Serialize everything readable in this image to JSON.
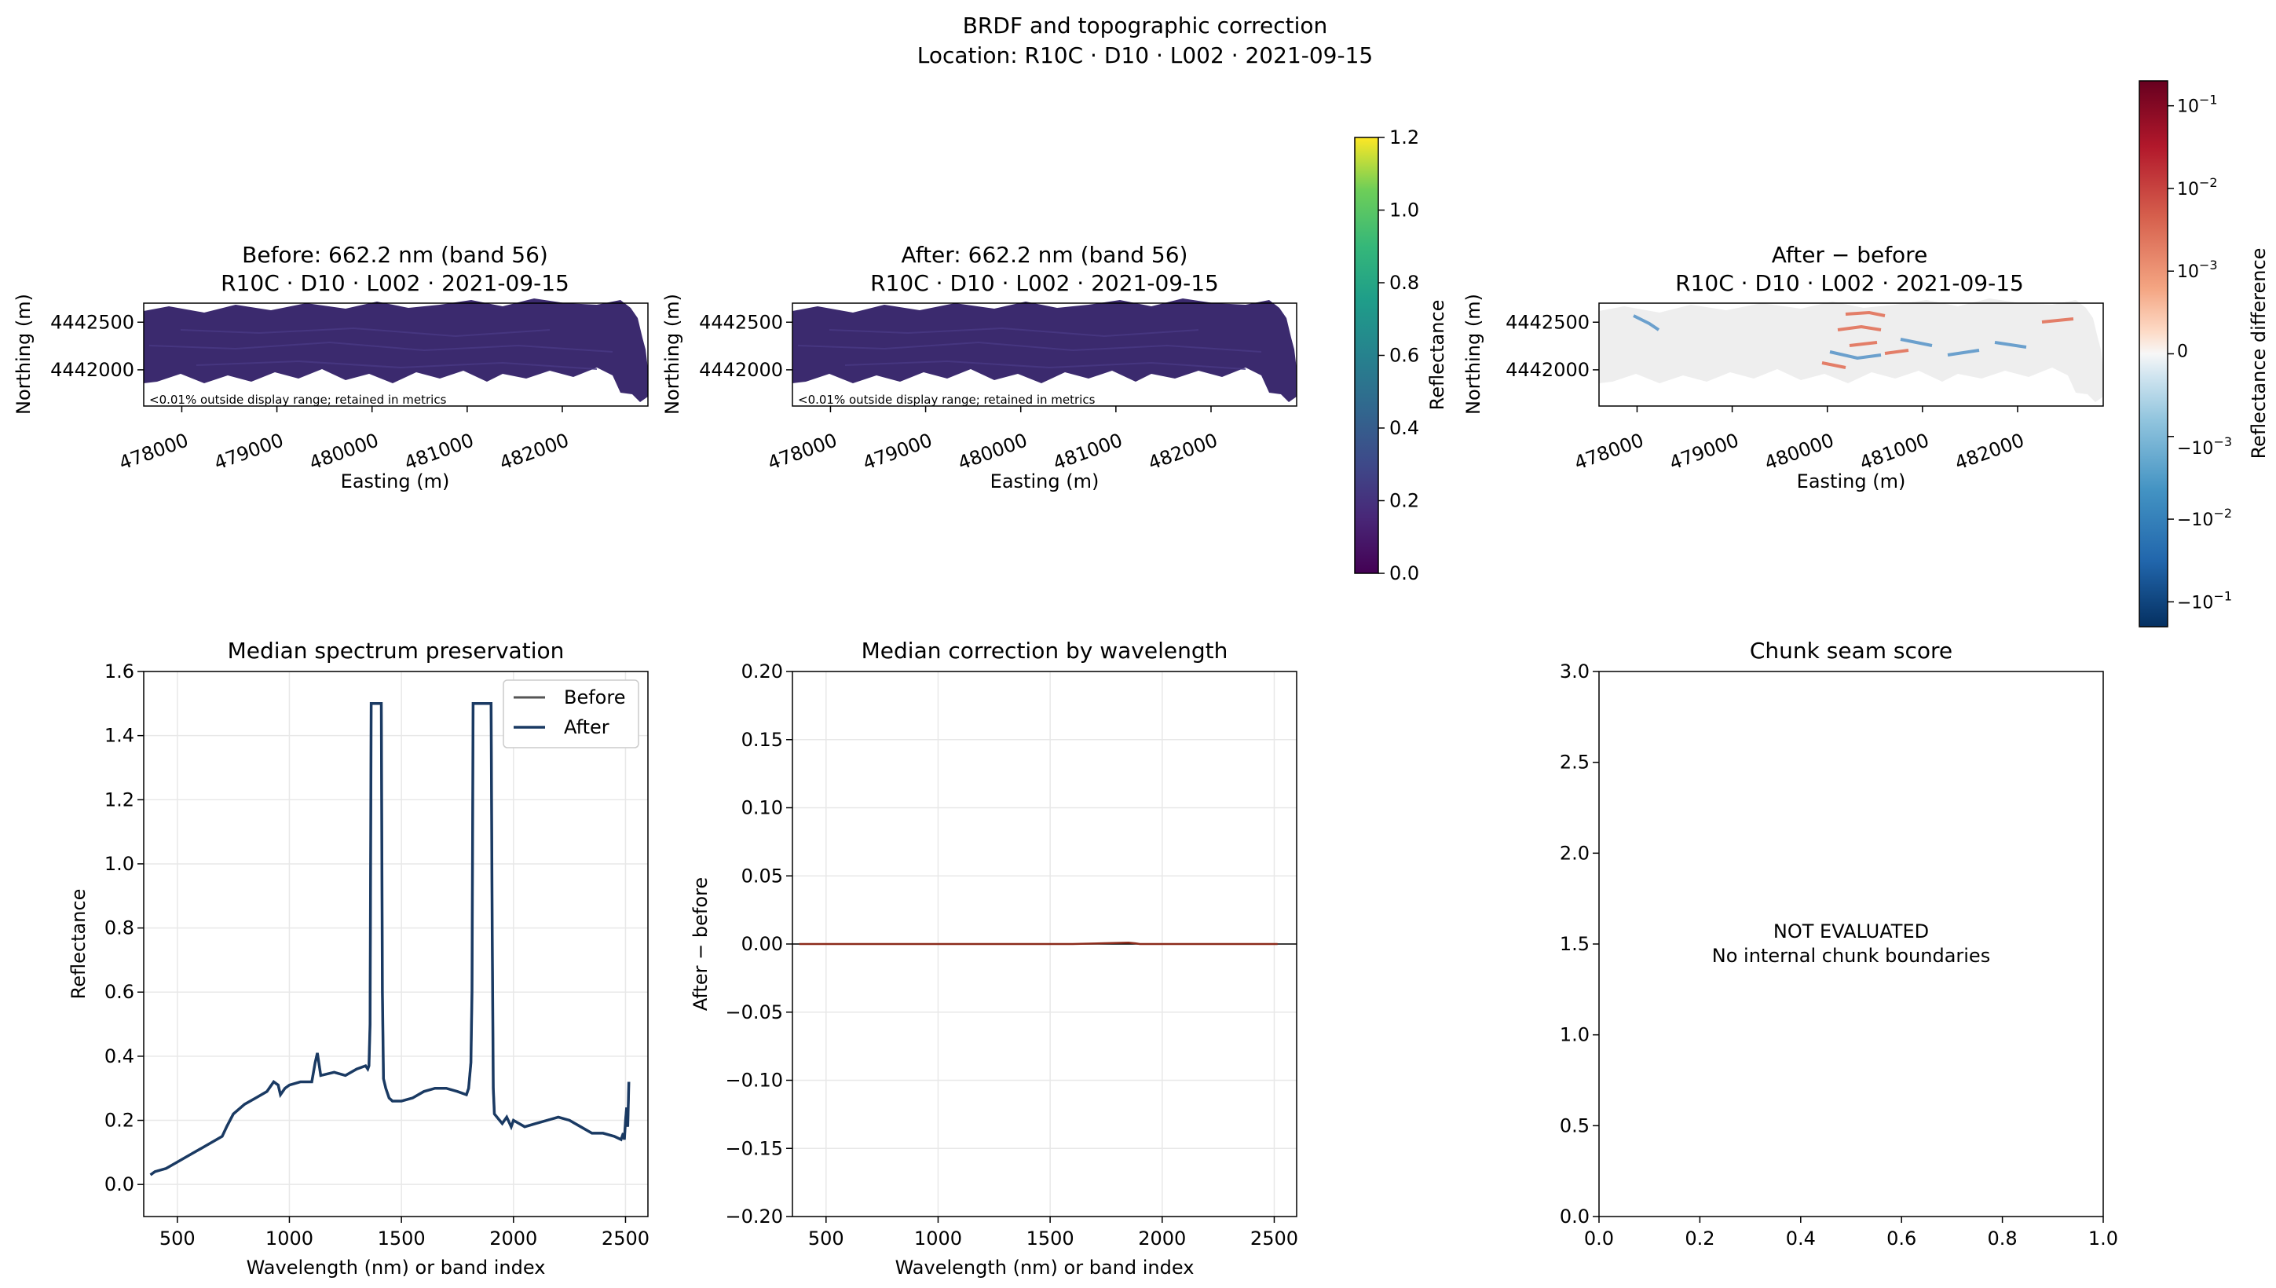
{
  "figure": {
    "title": "BRDF and topographic correction",
    "subtitle": "Location: R10C · D10 · L002 · 2021-09-15"
  },
  "colors": {
    "before_line": "#555555",
    "after_line": "#1a3a63",
    "diff_line": "#8b2a1a",
    "map_fill": "#3b2a6e",
    "grid": "#e8e8e8"
  },
  "chart_data": [
    {
      "id": "map_before",
      "type": "heatmap",
      "title": "Before: 662.2 nm (band 56)",
      "subtitle": "R10C · D10 · L002 · 2021-09-15",
      "xlabel": "Easting (m)",
      "ylabel": "Northing (m)",
      "xticks": [
        478000,
        479000,
        480000,
        481000,
        482000
      ],
      "yticks": [
        4442000,
        4442500
      ],
      "xlim": [
        477600,
        482900
      ],
      "ylim": [
        4441620,
        4442700
      ],
      "note": "<0.01% outside display range; retained in metrics",
      "colorbar": {
        "label": "Reflectance",
        "ticks": [
          "0.0",
          "0.2",
          "0.4",
          "0.6",
          "0.8",
          "1.0",
          "1.2"
        ],
        "range": [
          0,
          1.2
        ],
        "colormap": "viridis"
      }
    },
    {
      "id": "map_after",
      "type": "heatmap",
      "title": "After: 662.2 nm (band 56)",
      "subtitle": "R10C · D10 · L002 · 2021-09-15",
      "xlabel": "Easting (m)",
      "ylabel": "Northing (m)",
      "xticks": [
        478000,
        479000,
        480000,
        481000,
        482000
      ],
      "yticks": [
        4442000,
        4442500
      ],
      "xlim": [
        477600,
        482900
      ],
      "ylim": [
        4441620,
        4442700
      ],
      "note": "<0.01% outside display range; retained in metrics"
    },
    {
      "id": "map_diff",
      "type": "heatmap",
      "title": "After − before",
      "subtitle": "R10C · D10 · L002 · 2021-09-15",
      "xlabel": "Easting (m)",
      "ylabel": "Northing (m)",
      "xticks": [
        478000,
        479000,
        480000,
        481000,
        482000
      ],
      "yticks": [
        4442000,
        4442500
      ],
      "xlim": [
        477600,
        482900
      ],
      "ylim": [
        4441620,
        4442700
      ],
      "colorbar": {
        "label": "Reflectance difference",
        "scale": "symlog",
        "colormap": "RdBu_r",
        "ticks": [
          "10^-1",
          "10^-2",
          "10^-3",
          "0",
          "−10^-3",
          "−10^-2",
          "−10^-1"
        ],
        "tick_labels": [
          {
            "base": "10",
            "exp": "−1"
          },
          {
            "base": "10",
            "exp": "−2"
          },
          {
            "base": "10",
            "exp": "−3"
          },
          {
            "base": "0",
            "exp": ""
          },
          {
            "base": "−10",
            "exp": "−3"
          },
          {
            "base": "−10",
            "exp": "−2"
          },
          {
            "base": "−10",
            "exp": "−1"
          }
        ]
      }
    },
    {
      "id": "spectrum",
      "type": "line",
      "title": "Median spectrum preservation",
      "xlabel": "Wavelength (nm) or band index",
      "ylabel": "Reflectance",
      "xlim": [
        350,
        2600
      ],
      "ylim": [
        -0.1,
        1.6
      ],
      "xticks": [
        500,
        1000,
        1500,
        2000,
        2500
      ],
      "yticks": [
        0.0,
        0.2,
        0.4,
        0.6,
        0.8,
        1.0,
        1.2,
        1.4,
        1.6
      ],
      "grid": true,
      "legend_position": "top-right",
      "series": [
        {
          "name": "Before",
          "color": "#555555"
        },
        {
          "name": "After",
          "color": "#1a3a63"
        }
      ],
      "x": [
        380,
        400,
        450,
        500,
        550,
        600,
        650,
        700,
        720,
        750,
        800,
        850,
        900,
        930,
        950,
        960,
        980,
        1000,
        1050,
        1100,
        1115,
        1125,
        1140,
        1200,
        1250,
        1300,
        1340,
        1350,
        1355,
        1360,
        1365,
        1410,
        1415,
        1420,
        1430,
        1445,
        1460,
        1500,
        1550,
        1600,
        1650,
        1700,
        1750,
        1790,
        1800,
        1810,
        1815,
        1820,
        1900,
        1905,
        1910,
        1915,
        1950,
        1970,
        1990,
        2000,
        2050,
        2100,
        2150,
        2200,
        2250,
        2300,
        2350,
        2400,
        2450,
        2480,
        2490,
        2495,
        2500,
        2505,
        2510,
        2515
      ],
      "y": [
        0.03,
        0.04,
        0.05,
        0.07,
        0.09,
        0.11,
        0.13,
        0.15,
        0.18,
        0.22,
        0.25,
        0.27,
        0.29,
        0.32,
        0.31,
        0.28,
        0.3,
        0.31,
        0.32,
        0.32,
        0.38,
        0.41,
        0.34,
        0.35,
        0.34,
        0.36,
        0.37,
        0.36,
        0.37,
        0.5,
        1.5,
        1.5,
        0.6,
        0.33,
        0.3,
        0.27,
        0.26,
        0.26,
        0.27,
        0.29,
        0.3,
        0.3,
        0.29,
        0.28,
        0.3,
        0.38,
        0.6,
        1.5,
        1.5,
        0.8,
        0.3,
        0.22,
        0.19,
        0.21,
        0.18,
        0.2,
        0.18,
        0.19,
        0.2,
        0.21,
        0.2,
        0.18,
        0.16,
        0.16,
        0.15,
        0.14,
        0.16,
        0.14,
        0.2,
        0.24,
        0.18,
        0.32
      ]
    },
    {
      "id": "correction",
      "type": "line",
      "title": "Median correction by wavelength",
      "xlabel": "Wavelength (nm) or band index",
      "ylabel": "After − before",
      "xlim": [
        350,
        2600
      ],
      "ylim": [
        -0.2,
        0.2
      ],
      "xticks": [
        500,
        1000,
        1500,
        2000,
        2500
      ],
      "yticks": [
        -0.2,
        -0.15,
        -0.1,
        -0.05,
        0.0,
        0.05,
        0.1,
        0.15,
        0.2
      ],
      "ytick_labels": [
        "−0.20",
        "−0.15",
        "−0.10",
        "−0.05",
        "0.00",
        "0.05",
        "0.10",
        "0.15",
        "0.20"
      ],
      "grid": true,
      "series": [
        {
          "color": "#8b2a1a"
        }
      ],
      "x": [
        380,
        800,
        1200,
        1600,
        1850,
        1880,
        1900,
        2100,
        2515
      ],
      "y": [
        0.0,
        0.0,
        0.0,
        0.0,
        0.001,
        0.0005,
        0.0,
        0.0,
        0.0
      ]
    },
    {
      "id": "seam",
      "type": "line",
      "title": "Chunk seam score",
      "xlim": [
        0,
        1
      ],
      "ylim": [
        0,
        3
      ],
      "xticks": [
        0.0,
        0.2,
        0.4,
        0.6,
        0.8,
        1.0
      ],
      "yticks": [
        0.0,
        0.5,
        1.0,
        1.5,
        2.0,
        2.5,
        3.0
      ],
      "annotation": [
        "NOT EVALUATED",
        "No internal chunk boundaries"
      ]
    }
  ]
}
